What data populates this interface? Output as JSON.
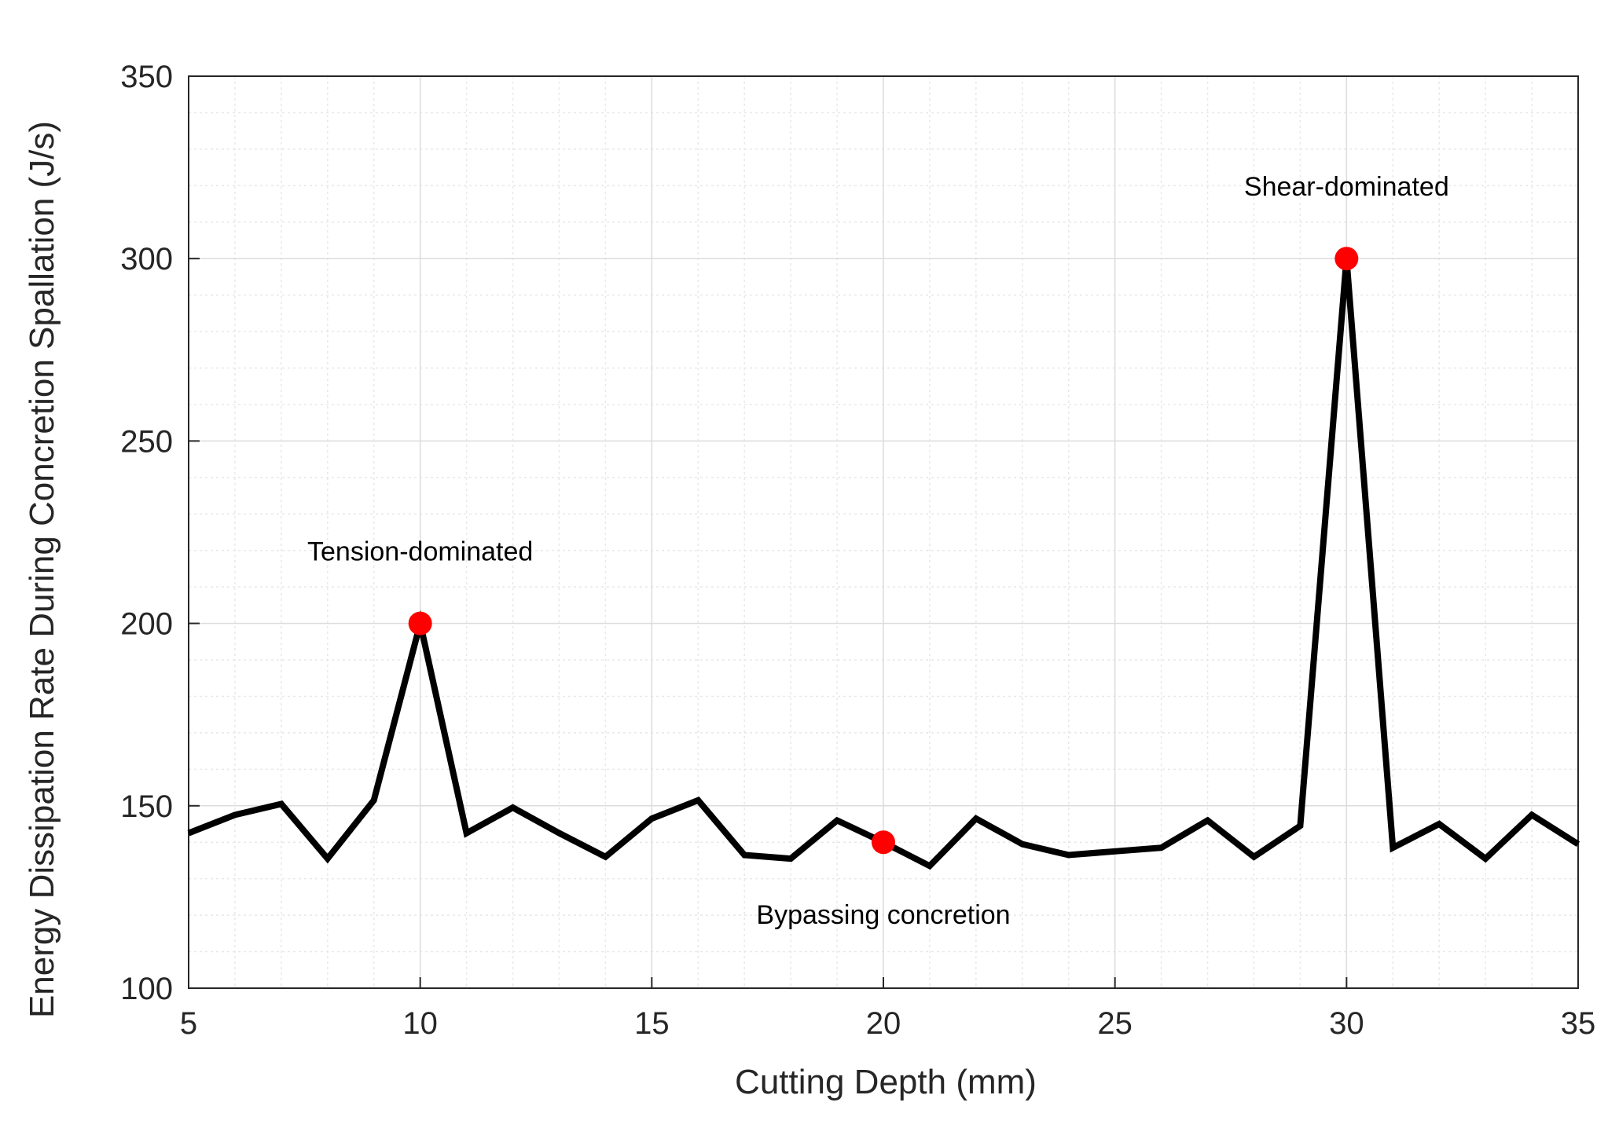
{
  "chart_data": {
    "type": "line",
    "title": "",
    "xlabel": "Cutting Depth (mm)",
    "ylabel": "Energy Dissipation Rate During Concretion Spallation (J/s)",
    "xlim": [
      5,
      35
    ],
    "ylim": [
      100,
      350
    ],
    "xticks": [
      5,
      10,
      15,
      20,
      25,
      30,
      35
    ],
    "yticks": [
      100,
      150,
      200,
      250,
      300,
      350
    ],
    "grid": true,
    "minor_grid": true,
    "series": [
      {
        "name": "Energy dissipation rate",
        "color": "#000000",
        "x": [
          5,
          6,
          7,
          8,
          9,
          10,
          11,
          12,
          13,
          14,
          15,
          16,
          17,
          18,
          19,
          20,
          21,
          22,
          23,
          24,
          25,
          26,
          27,
          28,
          29,
          30,
          31,
          32,
          33,
          34,
          35
        ],
        "y": [
          142.5,
          147.5,
          150.5,
          135.5,
          151.5,
          200,
          142.5,
          149.5,
          142.5,
          136,
          146.5,
          151.5,
          136.5,
          135.5,
          146,
          140,
          133.5,
          146.5,
          139.5,
          136.5,
          137.5,
          138.5,
          146,
          136,
          144.5,
          300,
          138.5,
          145,
          135.5,
          147.5,
          139.5
        ]
      }
    ],
    "highlights": [
      {
        "x": 10,
        "y": 200,
        "label": "Tension-dominated",
        "label_anchor": "above",
        "color": "#ff0000"
      },
      {
        "x": 20,
        "y": 140,
        "label": "Bypassing concretion",
        "label_anchor": "below",
        "color": "#ff0000"
      },
      {
        "x": 30,
        "y": 300,
        "label": "Shear-dominated",
        "label_anchor": "above",
        "color": "#ff0000"
      }
    ],
    "colors": {
      "line": "#000000",
      "marker": "#ff0000",
      "grid_major": "#dcdcdc",
      "grid_minor": "#e8e8e8",
      "axis": "#262626"
    }
  }
}
